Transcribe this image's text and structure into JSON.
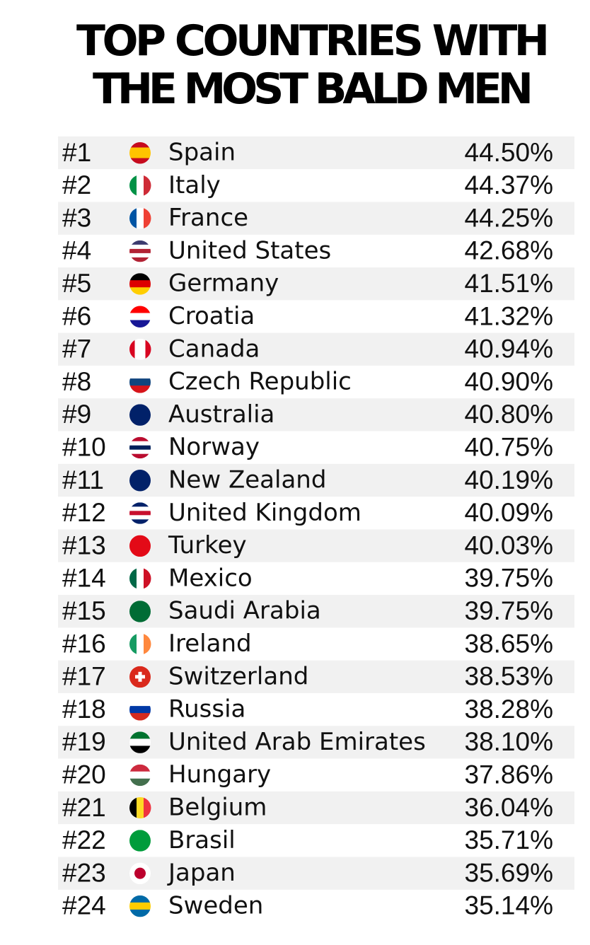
{
  "title": [
    "TOP COUNTRIES WITH",
    "THE MOST BALD MEN"
  ],
  "table": {
    "rows": [
      [
        "#1",
        "Spain",
        "44.50%"
      ],
      [
        "#2",
        "Italy",
        "44.37%"
      ],
      [
        "#3",
        "France",
        "44.25%"
      ],
      [
        "#4",
        "United States",
        "42.68%"
      ],
      [
        "#5",
        "Germany",
        "41.51%"
      ],
      [
        "#6",
        "Croatia",
        "41.32%"
      ],
      [
        "#7",
        "Canada",
        "40.94%"
      ],
      [
        "#8",
        "Czech Republic",
        "40.90%"
      ],
      [
        "#9",
        "Australia",
        "40.80%"
      ],
      [
        "#10",
        "Norway",
        "40.75%"
      ],
      [
        "#11",
        "New Zealand",
        "40.19%"
      ],
      [
        "#12",
        "United Kingdom",
        "40.09%"
      ],
      [
        "#13",
        "Turkey",
        "40.03%"
      ],
      [
        "#14",
        "Mexico",
        "39.75%"
      ],
      [
        "#15",
        "Saudi Arabia",
        "39.75%"
      ],
      [
        "#16",
        "Ireland",
        "38.65%"
      ],
      [
        "#17",
        "Switzerland",
        "38.53%"
      ],
      [
        "#18",
        "Russia",
        "38.28%"
      ],
      [
        "#19",
        "United Arab Emirates",
        "38.10%"
      ],
      [
        "#20",
        "Hungary",
        "37.86%"
      ],
      [
        "#21",
        "Belgium",
        "36.04%"
      ],
      [
        "#22",
        "Brasil",
        "35.71%"
      ],
      [
        "#23",
        "Japan",
        "35.69%"
      ],
      [
        "#24",
        "Sweden",
        "35.14%"
      ]
    ]
  }
}
